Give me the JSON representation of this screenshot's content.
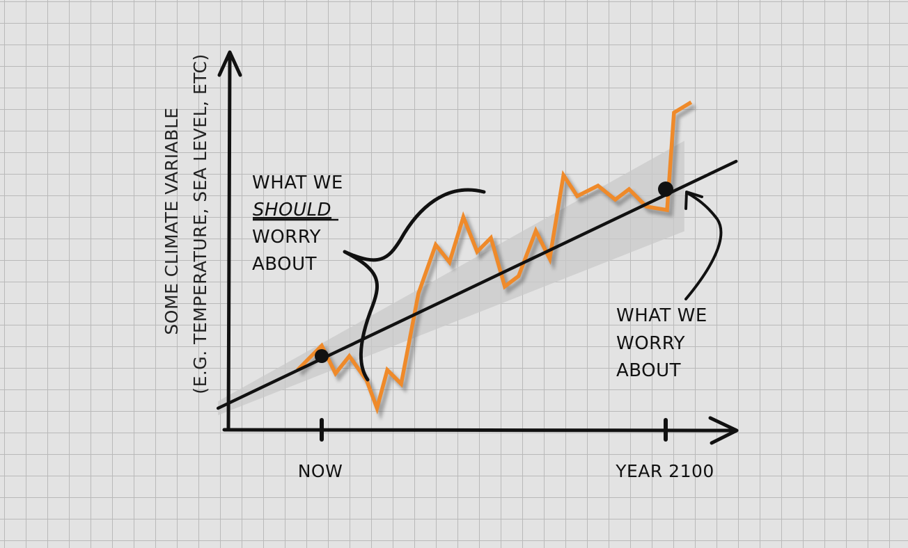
{
  "chart_data": {
    "type": "line",
    "ylabel": "SOME CLIMATE VARIABLE",
    "ylabel_sub": "(E.G. TEMPERATURE, SEA LEVEL, ETC)",
    "x_ticks": [
      {
        "label": "NOW",
        "x": 0
      },
      {
        "label": "YEAR 2100",
        "x": 100
      }
    ],
    "xlim": [
      -30,
      120
    ],
    "ylim": [
      0,
      100
    ],
    "series": [
      {
        "role": "variable",
        "color": "#ef8a2a",
        "x": [
          -7,
          0,
          4,
          8,
          13,
          16,
          19,
          23,
          28,
          33,
          37,
          41,
          45,
          49,
          53,
          57,
          62,
          66,
          70,
          74,
          80,
          85,
          89,
          94,
          100,
          102,
          107
        ],
        "y": [
          21,
          28,
          20,
          25,
          18,
          10,
          21,
          17,
          43,
          57,
          52,
          65,
          55,
          59,
          45,
          48,
          61,
          53,
          77,
          71,
          74,
          70,
          73,
          68,
          67,
          95,
          98
        ]
      },
      {
        "role": "trend",
        "color": "#111111",
        "x": [
          -30,
          120
        ],
        "y": [
          10,
          81
        ]
      }
    ],
    "band": {
      "color": "#c9c9c9",
      "width": 9
    },
    "markers": [
      {
        "x": 0,
        "y": 25
      },
      {
        "x": 100,
        "y": 73
      }
    ],
    "annotations": [
      {
        "lines": [
          "WHAT WE",
          "SHOULD",
          "WORRY",
          "ABOUT"
        ],
        "emphasis": "SHOULD",
        "target": "short-term variability"
      },
      {
        "lines": [
          "WHAT WE",
          "WORRY",
          "ABOUT"
        ],
        "target": "trend at YEAR 2100"
      }
    ],
    "grid": true,
    "legend": "none"
  }
}
